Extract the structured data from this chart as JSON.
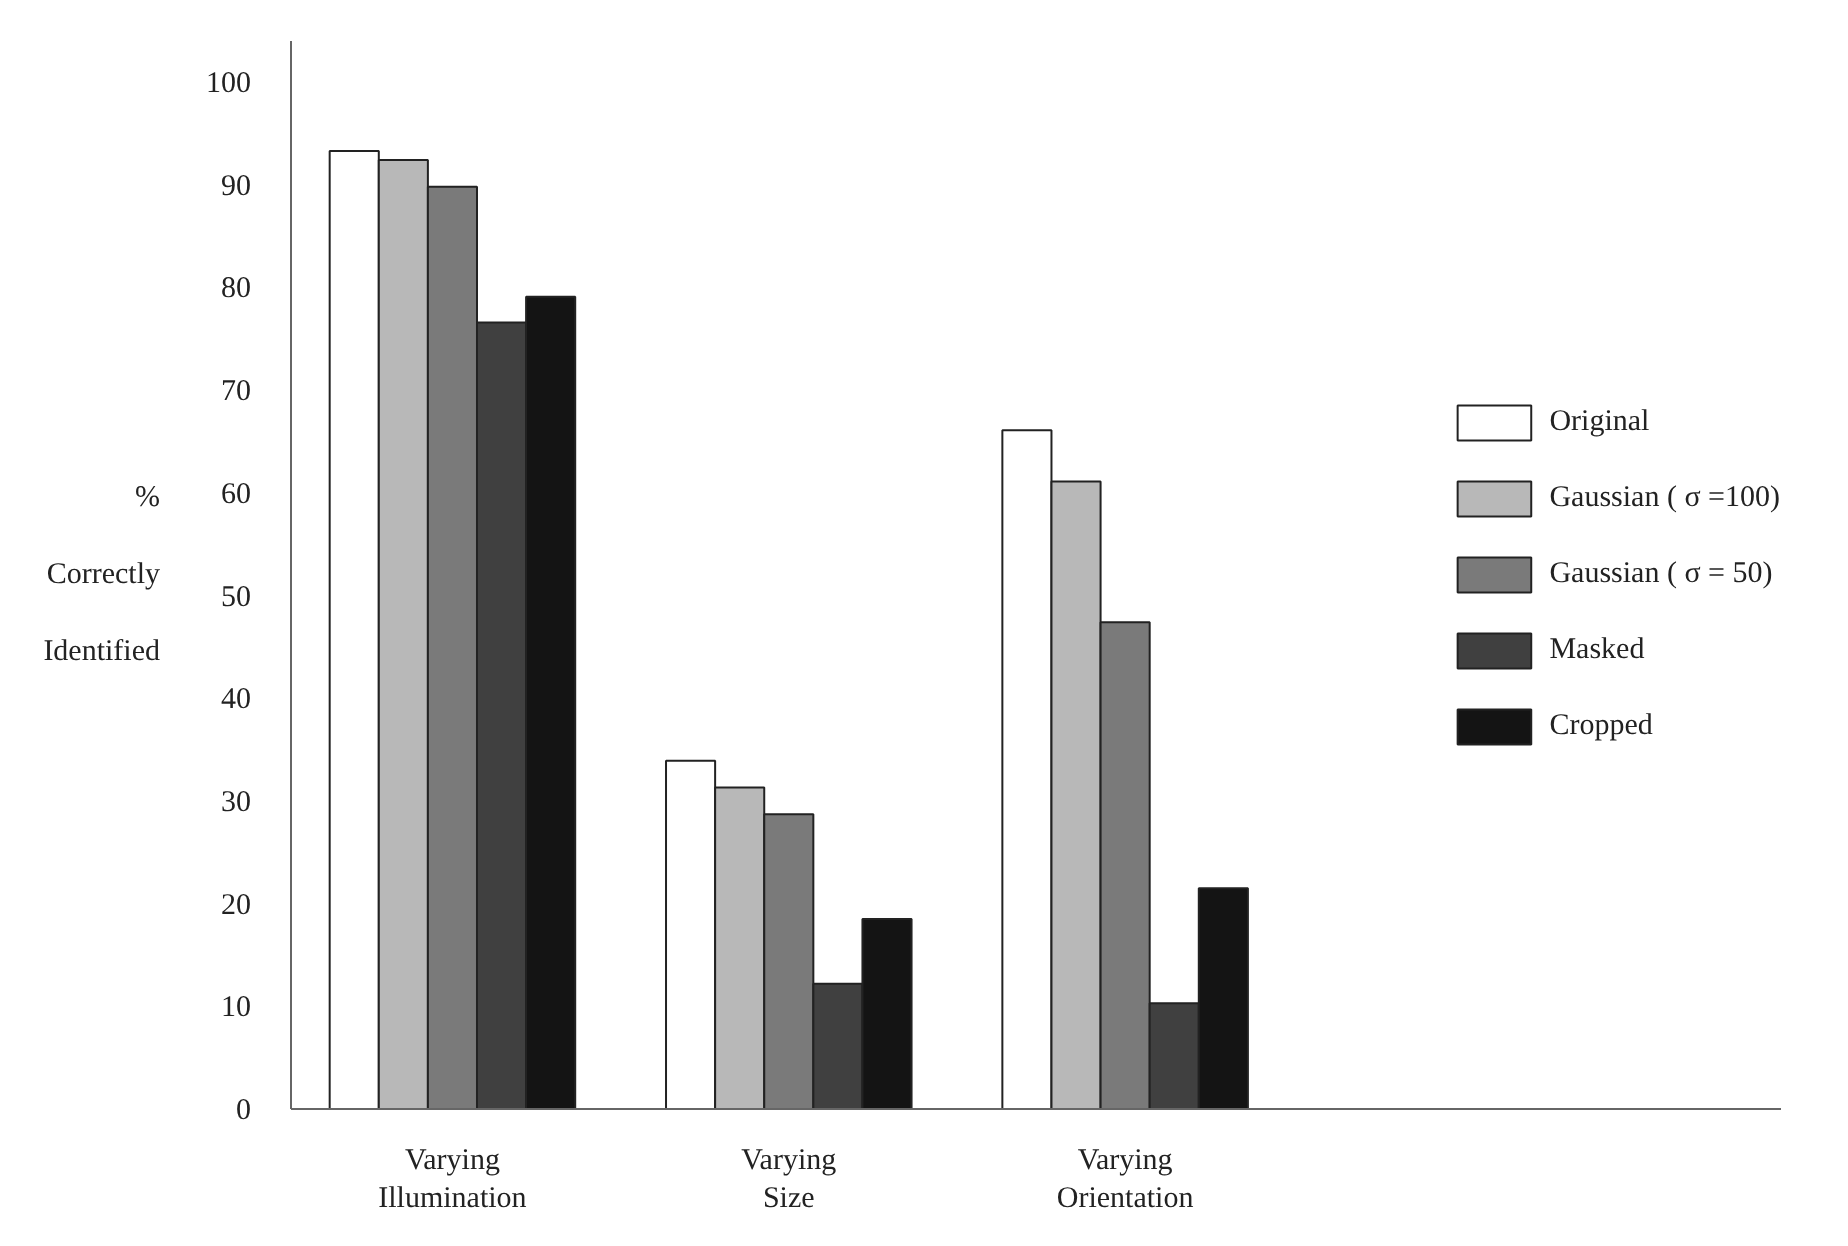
{
  "chart_data": {
    "type": "bar",
    "ylabel": "% Correctly Identified",
    "categories": [
      "Varying\nIllumination",
      "Varying\nSize",
      "Varying\nOrientation"
    ],
    "series": [
      {
        "name": "Original",
        "color": "#ffffff",
        "values": [
          93.3,
          33.9,
          66.1
        ]
      },
      {
        "name": "Gaussian ( σ =100)",
        "color": "#b8b8b8",
        "values": [
          92.4,
          31.3,
          61.1
        ]
      },
      {
        "name": "Gaussian ( σ = 50)",
        "color": "#7a7a7a",
        "values": [
          89.8,
          28.7,
          47.4
        ]
      },
      {
        "name": "Masked",
        "color": "#404040",
        "values": [
          76.6,
          12.2,
          10.3
        ]
      },
      {
        "name": "Cropped",
        "color": "#141414",
        "values": [
          79.1,
          18.5,
          21.5
        ]
      }
    ],
    "ylim": [
      0,
      104
    ],
    "yticks": [
      0,
      10,
      20,
      30,
      40,
      50,
      60,
      70,
      80,
      90,
      100
    ],
    "grid": false,
    "legend": "right"
  }
}
